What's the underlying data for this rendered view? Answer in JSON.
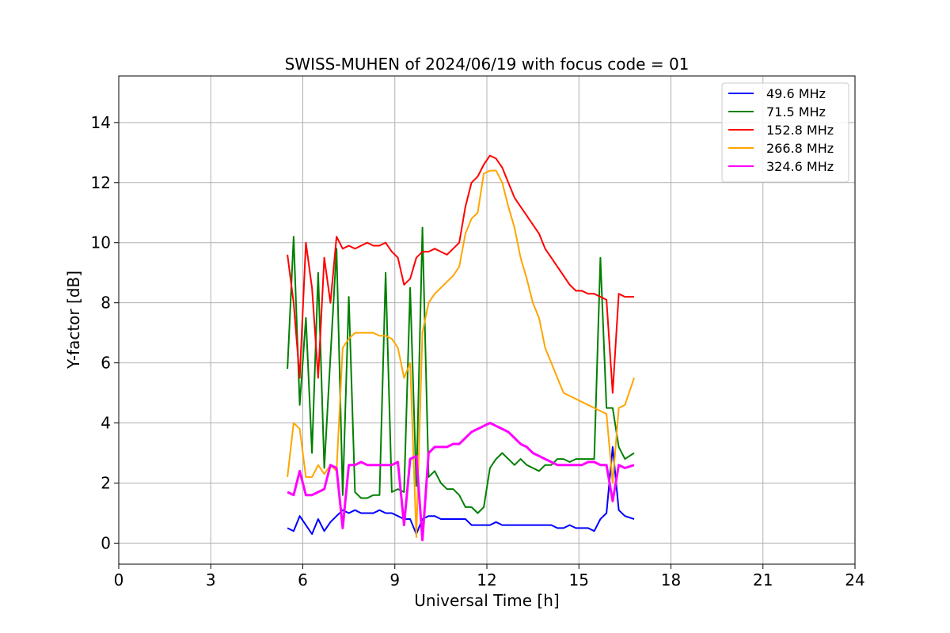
{
  "chart_data": {
    "type": "line",
    "title": "SWISS-MUHEN of 2024/06/19 with focus code = 01",
    "xlabel": "Universal Time [h]",
    "ylabel": "Y-factor [dB]",
    "xlim": [
      0,
      24
    ],
    "ylim": [
      -0.7,
      15.55
    ],
    "xticks": [
      0,
      3,
      6,
      9,
      12,
      15,
      18,
      21,
      24
    ],
    "yticks": [
      0,
      2,
      4,
      6,
      8,
      10,
      12,
      14
    ],
    "grid": true,
    "legend_position": "top-right",
    "series": [
      {
        "name": "49.6 MHz",
        "color": "#0000ff",
        "x": [
          5.5,
          5.7,
          5.9,
          6.1,
          6.3,
          6.5,
          6.7,
          6.9,
          7.1,
          7.3,
          7.5,
          7.7,
          7.9,
          8.1,
          8.3,
          8.5,
          8.7,
          8.9,
          9.1,
          9.3,
          9.5,
          9.7,
          9.9,
          10.1,
          10.3,
          10.5,
          10.7,
          10.9,
          11.1,
          11.3,
          11.5,
          11.7,
          11.9,
          12.1,
          12.3,
          12.5,
          12.7,
          12.9,
          13.1,
          13.3,
          13.5,
          13.7,
          13.9,
          14.1,
          14.3,
          14.5,
          14.7,
          14.9,
          15.1,
          15.3,
          15.5,
          15.7,
          15.9,
          16.1,
          16.3,
          16.5,
          16.8
        ],
        "y": [
          0.5,
          0.4,
          0.9,
          0.6,
          0.3,
          0.8,
          0.4,
          0.7,
          0.9,
          1.1,
          1.0,
          1.1,
          1.0,
          1.0,
          1.0,
          1.1,
          1.0,
          1.0,
          0.9,
          0.8,
          0.8,
          0.3,
          0.8,
          0.9,
          0.9,
          0.8,
          0.8,
          0.8,
          0.8,
          0.8,
          0.6,
          0.6,
          0.6,
          0.6,
          0.7,
          0.6,
          0.6,
          0.6,
          0.6,
          0.6,
          0.6,
          0.6,
          0.6,
          0.6,
          0.5,
          0.5,
          0.6,
          0.5,
          0.5,
          0.5,
          0.4,
          0.8,
          1.0,
          3.2,
          1.1,
          0.9,
          0.8
        ]
      },
      {
        "name": "71.5 MHz",
        "color": "#008000",
        "x": [
          5.5,
          5.7,
          5.9,
          6.1,
          6.3,
          6.5,
          6.7,
          6.9,
          7.1,
          7.3,
          7.5,
          7.7,
          7.9,
          8.1,
          8.3,
          8.5,
          8.7,
          8.9,
          9.1,
          9.3,
          9.5,
          9.7,
          9.9,
          10.1,
          10.3,
          10.5,
          10.7,
          10.9,
          11.1,
          11.3,
          11.5,
          11.7,
          11.9,
          12.1,
          12.3,
          12.5,
          12.7,
          12.9,
          13.1,
          13.3,
          13.5,
          13.7,
          13.9,
          14.1,
          14.3,
          14.5,
          14.7,
          14.9,
          15.1,
          15.3,
          15.5,
          15.7,
          15.9,
          16.1,
          16.3,
          16.5,
          16.8
        ],
        "y": [
          5.8,
          10.2,
          4.6,
          7.5,
          3.0,
          9.0,
          2.5,
          6.2,
          9.8,
          1.6,
          8.2,
          1.7,
          1.5,
          1.5,
          1.6,
          1.6,
          9.0,
          1.7,
          1.8,
          1.7,
          8.5,
          1.9,
          10.5,
          2.2,
          2.4,
          2.0,
          1.8,
          1.8,
          1.6,
          1.2,
          1.2,
          1.0,
          1.2,
          2.5,
          2.8,
          3.0,
          2.8,
          2.6,
          2.8,
          2.6,
          2.5,
          2.4,
          2.6,
          2.6,
          2.8,
          2.8,
          2.7,
          2.8,
          2.8,
          2.8,
          2.8,
          9.5,
          4.5,
          4.5,
          3.2,
          2.8,
          3.0
        ]
      },
      {
        "name": "152.8 MHz",
        "color": "#ff0000",
        "x": [
          5.5,
          5.7,
          5.9,
          6.1,
          6.3,
          6.5,
          6.7,
          6.9,
          7.1,
          7.3,
          7.5,
          7.7,
          7.9,
          8.1,
          8.3,
          8.5,
          8.7,
          8.9,
          9.1,
          9.3,
          9.5,
          9.7,
          9.9,
          10.1,
          10.3,
          10.5,
          10.7,
          10.9,
          11.1,
          11.3,
          11.5,
          11.7,
          11.9,
          12.1,
          12.3,
          12.5,
          12.7,
          12.9,
          13.1,
          13.3,
          13.5,
          13.7,
          13.9,
          14.1,
          14.3,
          14.5,
          14.7,
          14.9,
          15.1,
          15.3,
          15.5,
          15.7,
          15.9,
          16.1,
          16.3,
          16.5,
          16.8
        ],
        "y": [
          9.6,
          8.0,
          5.5,
          10.0,
          8.5,
          5.5,
          9.5,
          8.0,
          10.2,
          9.8,
          9.9,
          9.8,
          9.9,
          10.0,
          9.9,
          9.9,
          10.0,
          9.7,
          9.5,
          8.6,
          8.8,
          9.5,
          9.7,
          9.7,
          9.8,
          9.7,
          9.6,
          9.8,
          10.0,
          11.2,
          12.0,
          12.2,
          12.6,
          12.9,
          12.8,
          12.5,
          12.0,
          11.5,
          11.2,
          10.9,
          10.6,
          10.3,
          9.8,
          9.5,
          9.2,
          8.9,
          8.6,
          8.4,
          8.4,
          8.3,
          8.3,
          8.2,
          8.1,
          5.0,
          8.3,
          8.2,
          8.2
        ]
      },
      {
        "name": "266.8 MHz",
        "color": "#ffa500",
        "x": [
          5.5,
          5.7,
          5.9,
          6.1,
          6.3,
          6.5,
          6.7,
          6.9,
          7.1,
          7.3,
          7.5,
          7.7,
          7.9,
          8.1,
          8.3,
          8.5,
          8.7,
          8.9,
          9.1,
          9.3,
          9.5,
          9.7,
          9.9,
          10.1,
          10.3,
          10.5,
          10.7,
          10.9,
          11.1,
          11.3,
          11.5,
          11.7,
          11.9,
          12.1,
          12.3,
          12.5,
          12.7,
          12.9,
          13.1,
          13.3,
          13.5,
          13.7,
          13.9,
          14.1,
          14.3,
          14.5,
          14.7,
          14.9,
          15.1,
          15.3,
          15.5,
          15.7,
          15.9,
          16.1,
          16.3,
          16.5,
          16.8
        ],
        "y": [
          2.2,
          4.0,
          3.8,
          2.2,
          2.2,
          2.6,
          2.3,
          2.6,
          2.4,
          6.5,
          6.8,
          7.0,
          7.0,
          7.0,
          7.0,
          6.9,
          6.9,
          6.8,
          6.5,
          5.5,
          6.0,
          0.2,
          7.0,
          8.0,
          8.3,
          8.5,
          8.7,
          8.9,
          9.2,
          10.3,
          10.8,
          11.0,
          12.3,
          12.4,
          12.4,
          12.0,
          11.2,
          10.5,
          9.5,
          8.8,
          8.0,
          7.5,
          6.5,
          6.0,
          5.5,
          5.0,
          4.9,
          4.8,
          4.7,
          4.6,
          4.5,
          4.4,
          4.3,
          2.0,
          4.5,
          4.6,
          5.5
        ]
      },
      {
        "name": "324.6 MHz",
        "color": "#ff00ff",
        "x": [
          5.5,
          5.7,
          5.9,
          6.1,
          6.3,
          6.5,
          6.7,
          6.9,
          7.1,
          7.3,
          7.5,
          7.7,
          7.9,
          8.1,
          8.3,
          8.5,
          8.7,
          8.9,
          9.1,
          9.3,
          9.5,
          9.7,
          9.9,
          10.1,
          10.3,
          10.5,
          10.7,
          10.9,
          11.1,
          11.3,
          11.5,
          11.7,
          11.9,
          12.1,
          12.3,
          12.5,
          12.7,
          12.9,
          13.1,
          13.3,
          13.5,
          13.7,
          13.9,
          14.1,
          14.3,
          14.5,
          14.7,
          14.9,
          15.1,
          15.3,
          15.5,
          15.7,
          15.9,
          16.1,
          16.3,
          16.5,
          16.8
        ],
        "y": [
          1.7,
          1.6,
          2.4,
          1.6,
          1.6,
          1.7,
          1.8,
          2.6,
          2.5,
          0.5,
          2.6,
          2.6,
          2.7,
          2.6,
          2.6,
          2.6,
          2.6,
          2.6,
          2.7,
          0.6,
          2.8,
          2.9,
          0.1,
          3.0,
          3.2,
          3.2,
          3.2,
          3.3,
          3.3,
          3.5,
          3.7,
          3.8,
          3.9,
          4.0,
          3.9,
          3.8,
          3.7,
          3.5,
          3.3,
          3.2,
          3.0,
          2.9,
          2.8,
          2.7,
          2.6,
          2.6,
          2.6,
          2.6,
          2.6,
          2.7,
          2.7,
          2.6,
          2.6,
          1.4,
          2.6,
          2.5,
          2.6
        ]
      }
    ]
  }
}
